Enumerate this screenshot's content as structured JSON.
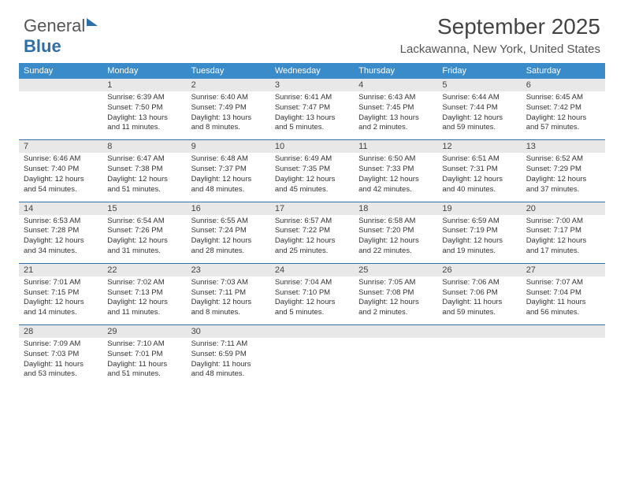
{
  "logo": {
    "text1": "General",
    "text2": "Blue"
  },
  "title": "September 2025",
  "subtitle": "Lackawanna, New York, United States",
  "colors": {
    "header_bar": "#3a8bc9",
    "week_divider": "#2f6fa7",
    "daynum_bg": "#e8e8e8",
    "text": "#333333",
    "logo_gray": "#555555",
    "logo_blue": "#2f6fa7"
  },
  "days_of_week": [
    "Sunday",
    "Monday",
    "Tuesday",
    "Wednesday",
    "Thursday",
    "Friday",
    "Saturday"
  ],
  "weeks": [
    [
      {
        "n": "",
        "sunrise": "",
        "sunset": "",
        "daylight": ""
      },
      {
        "n": "1",
        "sunrise": "Sunrise: 6:39 AM",
        "sunset": "Sunset: 7:50 PM",
        "daylight": "Daylight: 13 hours and 11 minutes."
      },
      {
        "n": "2",
        "sunrise": "Sunrise: 6:40 AM",
        "sunset": "Sunset: 7:49 PM",
        "daylight": "Daylight: 13 hours and 8 minutes."
      },
      {
        "n": "3",
        "sunrise": "Sunrise: 6:41 AM",
        "sunset": "Sunset: 7:47 PM",
        "daylight": "Daylight: 13 hours and 5 minutes."
      },
      {
        "n": "4",
        "sunrise": "Sunrise: 6:43 AM",
        "sunset": "Sunset: 7:45 PM",
        "daylight": "Daylight: 13 hours and 2 minutes."
      },
      {
        "n": "5",
        "sunrise": "Sunrise: 6:44 AM",
        "sunset": "Sunset: 7:44 PM",
        "daylight": "Daylight: 12 hours and 59 minutes."
      },
      {
        "n": "6",
        "sunrise": "Sunrise: 6:45 AM",
        "sunset": "Sunset: 7:42 PM",
        "daylight": "Daylight: 12 hours and 57 minutes."
      }
    ],
    [
      {
        "n": "7",
        "sunrise": "Sunrise: 6:46 AM",
        "sunset": "Sunset: 7:40 PM",
        "daylight": "Daylight: 12 hours and 54 minutes."
      },
      {
        "n": "8",
        "sunrise": "Sunrise: 6:47 AM",
        "sunset": "Sunset: 7:38 PM",
        "daylight": "Daylight: 12 hours and 51 minutes."
      },
      {
        "n": "9",
        "sunrise": "Sunrise: 6:48 AM",
        "sunset": "Sunset: 7:37 PM",
        "daylight": "Daylight: 12 hours and 48 minutes."
      },
      {
        "n": "10",
        "sunrise": "Sunrise: 6:49 AM",
        "sunset": "Sunset: 7:35 PM",
        "daylight": "Daylight: 12 hours and 45 minutes."
      },
      {
        "n": "11",
        "sunrise": "Sunrise: 6:50 AM",
        "sunset": "Sunset: 7:33 PM",
        "daylight": "Daylight: 12 hours and 42 minutes."
      },
      {
        "n": "12",
        "sunrise": "Sunrise: 6:51 AM",
        "sunset": "Sunset: 7:31 PM",
        "daylight": "Daylight: 12 hours and 40 minutes."
      },
      {
        "n": "13",
        "sunrise": "Sunrise: 6:52 AM",
        "sunset": "Sunset: 7:29 PM",
        "daylight": "Daylight: 12 hours and 37 minutes."
      }
    ],
    [
      {
        "n": "14",
        "sunrise": "Sunrise: 6:53 AM",
        "sunset": "Sunset: 7:28 PM",
        "daylight": "Daylight: 12 hours and 34 minutes."
      },
      {
        "n": "15",
        "sunrise": "Sunrise: 6:54 AM",
        "sunset": "Sunset: 7:26 PM",
        "daylight": "Daylight: 12 hours and 31 minutes."
      },
      {
        "n": "16",
        "sunrise": "Sunrise: 6:55 AM",
        "sunset": "Sunset: 7:24 PM",
        "daylight": "Daylight: 12 hours and 28 minutes."
      },
      {
        "n": "17",
        "sunrise": "Sunrise: 6:57 AM",
        "sunset": "Sunset: 7:22 PM",
        "daylight": "Daylight: 12 hours and 25 minutes."
      },
      {
        "n": "18",
        "sunrise": "Sunrise: 6:58 AM",
        "sunset": "Sunset: 7:20 PM",
        "daylight": "Daylight: 12 hours and 22 minutes."
      },
      {
        "n": "19",
        "sunrise": "Sunrise: 6:59 AM",
        "sunset": "Sunset: 7:19 PM",
        "daylight": "Daylight: 12 hours and 19 minutes."
      },
      {
        "n": "20",
        "sunrise": "Sunrise: 7:00 AM",
        "sunset": "Sunset: 7:17 PM",
        "daylight": "Daylight: 12 hours and 17 minutes."
      }
    ],
    [
      {
        "n": "21",
        "sunrise": "Sunrise: 7:01 AM",
        "sunset": "Sunset: 7:15 PM",
        "daylight": "Daylight: 12 hours and 14 minutes."
      },
      {
        "n": "22",
        "sunrise": "Sunrise: 7:02 AM",
        "sunset": "Sunset: 7:13 PM",
        "daylight": "Daylight: 12 hours and 11 minutes."
      },
      {
        "n": "23",
        "sunrise": "Sunrise: 7:03 AM",
        "sunset": "Sunset: 7:11 PM",
        "daylight": "Daylight: 12 hours and 8 minutes."
      },
      {
        "n": "24",
        "sunrise": "Sunrise: 7:04 AM",
        "sunset": "Sunset: 7:10 PM",
        "daylight": "Daylight: 12 hours and 5 minutes."
      },
      {
        "n": "25",
        "sunrise": "Sunrise: 7:05 AM",
        "sunset": "Sunset: 7:08 PM",
        "daylight": "Daylight: 12 hours and 2 minutes."
      },
      {
        "n": "26",
        "sunrise": "Sunrise: 7:06 AM",
        "sunset": "Sunset: 7:06 PM",
        "daylight": "Daylight: 11 hours and 59 minutes."
      },
      {
        "n": "27",
        "sunrise": "Sunrise: 7:07 AM",
        "sunset": "Sunset: 7:04 PM",
        "daylight": "Daylight: 11 hours and 56 minutes."
      }
    ],
    [
      {
        "n": "28",
        "sunrise": "Sunrise: 7:09 AM",
        "sunset": "Sunset: 7:03 PM",
        "daylight": "Daylight: 11 hours and 53 minutes."
      },
      {
        "n": "29",
        "sunrise": "Sunrise: 7:10 AM",
        "sunset": "Sunset: 7:01 PM",
        "daylight": "Daylight: 11 hours and 51 minutes."
      },
      {
        "n": "30",
        "sunrise": "Sunrise: 7:11 AM",
        "sunset": "Sunset: 6:59 PM",
        "daylight": "Daylight: 11 hours and 48 minutes."
      },
      {
        "n": "",
        "sunrise": "",
        "sunset": "",
        "daylight": ""
      },
      {
        "n": "",
        "sunrise": "",
        "sunset": "",
        "daylight": ""
      },
      {
        "n": "",
        "sunrise": "",
        "sunset": "",
        "daylight": ""
      },
      {
        "n": "",
        "sunrise": "",
        "sunset": "",
        "daylight": ""
      }
    ]
  ]
}
